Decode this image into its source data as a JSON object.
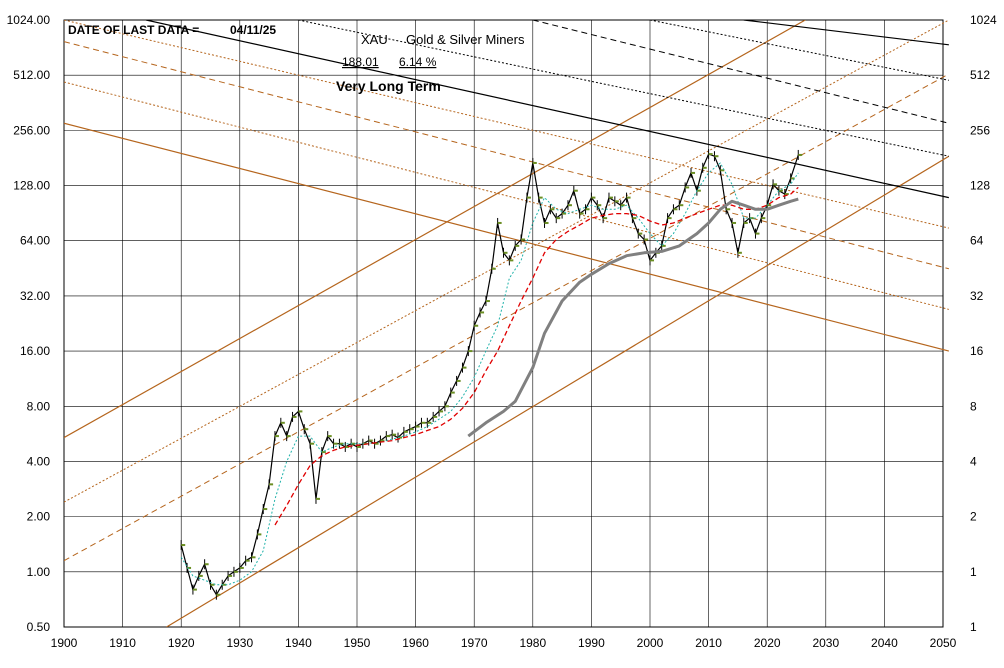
{
  "chart_data": {
    "type": "line",
    "yscale": "log2",
    "xlim": [
      1900,
      2050
    ],
    "ylim": [
      0.5,
      1024
    ],
    "grid": true,
    "x_ticks": [
      1900,
      1910,
      1920,
      1930,
      1940,
      1950,
      1960,
      1970,
      1980,
      1990,
      2000,
      2010,
      2020,
      2030,
      2040,
      2050
    ],
    "y_ticks_left": [
      "0.50",
      "1.00",
      "2.00",
      "4.00",
      "8.00",
      "16.00",
      "32.00",
      "64.00",
      "128.00",
      "256.00",
      "512.00",
      "1024.00"
    ],
    "y_ticks_right": [
      "1",
      "1",
      "2",
      "4",
      "8",
      "16",
      "32",
      "64",
      "128",
      "256",
      "512",
      "1024"
    ],
    "annotations": {
      "last_data_label": "DATE OF LAST DATA =",
      "last_data_date": "04/11/25",
      "ticker": "XAU",
      "name": "Gold & Silver Miners",
      "last_value": "188.01",
      "change": "6.14 %",
      "horizon": "Very Long Term"
    },
    "colors": {
      "price": "#000000",
      "price_marker": "#6b8e23",
      "ma_short": "#20b2aa",
      "ma_medium": "#e00000",
      "ma_long": "#808080",
      "channel": "#b5651d",
      "down_channel": "#000000"
    },
    "series": [
      {
        "key": "price",
        "x": [
          1920,
          1921,
          1922,
          1923,
          1924,
          1925,
          1926,
          1927,
          1928,
          1929,
          1930,
          1931,
          1932,
          1933,
          1934,
          1935,
          1936,
          1937,
          1938,
          1939,
          1940,
          1941,
          1942,
          1943,
          1944,
          1945,
          1946,
          1947,
          1948,
          1949,
          1950,
          1951,
          1952,
          1953,
          1954,
          1955,
          1956,
          1957,
          1958,
          1959,
          1960,
          1961,
          1962,
          1963,
          1964,
          1965,
          1966,
          1967,
          1968,
          1969,
          1970,
          1971,
          1972,
          1973,
          1974,
          1975,
          1976,
          1977,
          1978,
          1979,
          1980,
          1981,
          1982,
          1983,
          1984,
          1985,
          1986,
          1987,
          1988,
          1989,
          1990,
          1991,
          1992,
          1993,
          1994,
          1995,
          1996,
          1997,
          1998,
          1999,
          2000,
          2001,
          2002,
          2003,
          2004,
          2005,
          2006,
          2007,
          2008,
          2009,
          2010,
          2011,
          2012,
          2013,
          2014,
          2015,
          2016,
          2017,
          2018,
          2019,
          2020,
          2021,
          2022,
          2023,
          2024,
          2025.3
        ],
        "y": [
          1.4,
          1.05,
          0.8,
          0.95,
          1.1,
          0.85,
          0.75,
          0.85,
          0.95,
          1.0,
          1.05,
          1.15,
          1.2,
          1.6,
          2.2,
          3.0,
          5.5,
          6.5,
          5.5,
          7.0,
          7.5,
          6.0,
          5.0,
          2.5,
          4.5,
          5.5,
          5.0,
          5.0,
          4.8,
          5.0,
          4.8,
          5.0,
          5.2,
          5.0,
          5.2,
          5.5,
          5.6,
          5.4,
          5.8,
          6.0,
          6.2,
          6.5,
          6.5,
          7.0,
          7.5,
          8.0,
          9.5,
          11,
          13,
          16,
          22,
          26,
          30,
          45,
          80,
          55,
          50,
          60,
          65,
          110,
          170,
          110,
          80,
          95,
          85,
          90,
          100,
          120,
          90,
          95,
          110,
          100,
          85,
          110,
          105,
          100,
          110,
          85,
          70,
          65,
          50,
          55,
          60,
          85,
          95,
          100,
          125,
          150,
          120,
          160,
          190,
          185,
          155,
          95,
          80,
          55,
          80,
          85,
          70,
          85,
          100,
          130,
          120,
          115,
          140,
          188
        ]
      },
      {
        "key": "ma_short",
        "x": [
          1920,
          1922,
          1924,
          1926,
          1928,
          1930,
          1932,
          1934,
          1935,
          1936,
          1938,
          1940,
          1942,
          1944,
          1946,
          1948,
          1950,
          1952,
          1954,
          1956,
          1958,
          1960,
          1962,
          1964,
          1966,
          1968,
          1970,
          1972,
          1974,
          1976,
          1978,
          1980,
          1982,
          1984,
          1986,
          1988,
          1990,
          1992,
          1994,
          1996,
          1998,
          2000,
          2002,
          2004,
          2006,
          2008,
          2010,
          2012,
          2014,
          2016,
          2018,
          2020,
          2022,
          2024,
          2025.3
        ],
        "y": [
          1.2,
          0.95,
          0.9,
          0.85,
          0.85,
          0.9,
          1.0,
          1.3,
          1.8,
          2.5,
          4.0,
          5.5,
          5.5,
          4.5,
          4.8,
          5.0,
          5.0,
          5.0,
          5.1,
          5.3,
          5.5,
          5.8,
          6.2,
          6.8,
          7.5,
          9.0,
          11.5,
          16,
          22,
          40,
          50,
          80,
          110,
          95,
          90,
          95,
          100,
          95,
          95,
          100,
          85,
          70,
          60,
          70,
          90,
          120,
          150,
          170,
          130,
          85,
          85,
          100,
          120,
          130,
          150
        ]
      },
      {
        "key": "ma_medium",
        "x": [
          1936,
          1938,
          1940,
          1942,
          1944,
          1946,
          1948,
          1950,
          1952,
          1954,
          1956,
          1958,
          1960,
          1962,
          1964,
          1966,
          1968,
          1970,
          1972,
          1974,
          1976,
          1978,
          1980,
          1982,
          1984,
          1986,
          1988,
          1990,
          1992,
          1994,
          1996,
          1998,
          2000,
          2002,
          2004,
          2006,
          2008,
          2010,
          2012,
          2014,
          2016,
          2018,
          2020,
          2022,
          2024,
          2025.3
        ],
        "y": [
          1.8,
          2.3,
          3.0,
          3.8,
          4.3,
          4.6,
          4.8,
          4.9,
          5.0,
          5.1,
          5.2,
          5.4,
          5.6,
          5.9,
          6.2,
          6.8,
          7.8,
          9.5,
          12.5,
          16,
          22,
          30,
          40,
          55,
          65,
          72,
          78,
          85,
          88,
          90,
          90,
          88,
          82,
          78,
          80,
          85,
          90,
          95,
          100,
          100,
          95,
          95,
          100,
          110,
          115,
          125
        ]
      },
      {
        "key": "ma_long",
        "x": [
          1969,
          1972,
          1975,
          1977,
          1980,
          1982,
          1985,
          1988,
          1990,
          1993,
          1996,
          1999,
          2002,
          2005,
          2008,
          2010,
          2012,
          2014,
          2016,
          2018,
          2020,
          2022,
          2024,
          2025.3
        ],
        "y": [
          5.5,
          6.5,
          7.5,
          8.5,
          13,
          20,
          30,
          38,
          42,
          48,
          53,
          55,
          56,
          60,
          70,
          80,
          95,
          105,
          100,
          95,
          95,
          100,
          105,
          108
        ]
      }
    ],
    "trend_lines": [
      {
        "key": "channel_main_up",
        "style": "solid",
        "points": [
          [
            1917.5,
            0.5
          ],
          [
            2051,
            185
          ]
        ]
      },
      {
        "key": "channel_solid_up_2",
        "style": "solid",
        "points": [
          [
            1900,
            5.4
          ],
          [
            2026.5,
            1024
          ]
        ]
      },
      {
        "key": "channel_dot_up_1",
        "style": "dotted",
        "points": [
          [
            1900,
            2.4
          ],
          [
            2051,
            1024
          ]
        ]
      },
      {
        "key": "channel_dash_up_1",
        "style": "dashed",
        "points": [
          [
            1900,
            1.15
          ],
          [
            2051,
            520
          ]
        ]
      },
      {
        "key": "channel_solid_down_1",
        "style": "solid",
        "points": [
          [
            1900,
            280
          ],
          [
            2051,
            16
          ]
        ]
      },
      {
        "key": "channel_dot_down_1",
        "style": "dotted",
        "points": [
          [
            1900,
            470
          ],
          [
            2051,
            27
          ]
        ]
      },
      {
        "key": "channel_dash_down_1",
        "style": "dashed",
        "points": [
          [
            1900,
            780
          ],
          [
            2051,
            45
          ]
        ]
      },
      {
        "key": "channel_dot_down_2",
        "style": "dotted",
        "points": [
          [
            1900,
            1024
          ],
          [
            2051,
            75
          ]
        ]
      },
      {
        "key": "black_main_down",
        "style": "solid",
        "points": [
          [
            1914,
            1024
          ],
          [
            2051,
            110
          ]
        ]
      },
      {
        "key": "black_dot_down_1",
        "style": "dotted",
        "points": [
          [
            1940,
            1024
          ],
          [
            2051,
            185
          ]
        ]
      },
      {
        "key": "black_dash_down_1",
        "style": "dashed",
        "points": [
          [
            1980,
            1024
          ],
          [
            2051,
            280
          ]
        ]
      },
      {
        "key": "black_dot_down_2",
        "style": "dotted",
        "points": [
          [
            2000,
            1024
          ],
          [
            2051,
            480
          ]
        ]
      },
      {
        "key": "black_solid_down_2",
        "style": "solid",
        "points": [
          [
            2016,
            1024
          ],
          [
            2051,
            750
          ]
        ]
      }
    ]
  }
}
